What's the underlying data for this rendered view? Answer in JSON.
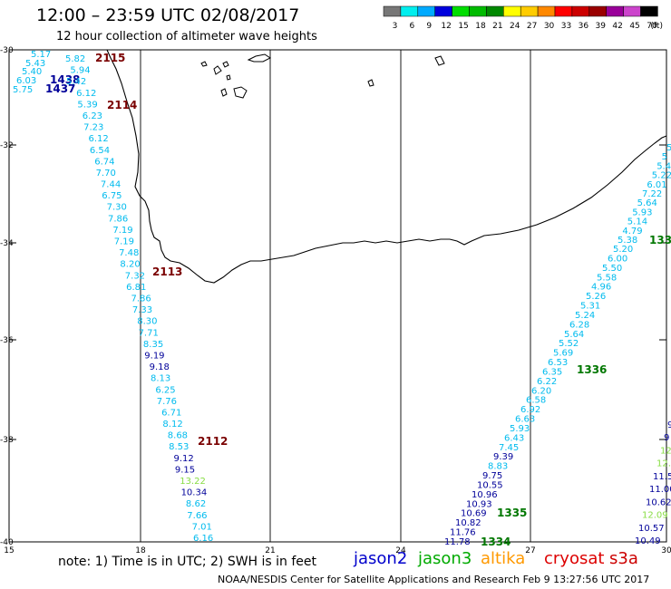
{
  "header": {
    "title": "12:00 – 23:59 UTC 02/08/2017",
    "subtitle": "12 hour collection of altimeter wave heights"
  },
  "legend": {
    "unit": "(ft)",
    "bins": [
      {
        "label": "3",
        "color": "#777777"
      },
      {
        "label": "6",
        "color": "#00eeee"
      },
      {
        "label": "9",
        "color": "#00aaff"
      },
      {
        "label": "12",
        "color": "#0000dd"
      },
      {
        "label": "15",
        "color": "#00dd00"
      },
      {
        "label": "18",
        "color": "#00bb00"
      },
      {
        "label": "21",
        "color": "#008800"
      },
      {
        "label": "24",
        "color": "#ffff00"
      },
      {
        "label": "27",
        "color": "#ffcc00"
      },
      {
        "label": "30",
        "color": "#ff8800"
      },
      {
        "label": "33",
        "color": "#ff0000"
      },
      {
        "label": "36",
        "color": "#cc0000"
      },
      {
        "label": "39",
        "color": "#990000"
      },
      {
        "label": "42",
        "color": "#990099"
      },
      {
        "label": "45",
        "color": "#cc44cc"
      },
      {
        "label": "70",
        "color": "#000000"
      }
    ]
  },
  "axes": {
    "lon_ticks": [
      "15",
      "18",
      "21",
      "24",
      "27",
      "30"
    ],
    "lat_ticks": [
      "-30",
      "-32",
      "-34",
      "-36",
      "-38",
      "-40"
    ]
  },
  "colors": {
    "c1": "#00bbee",
    "c2": "#000099",
    "c3": "#88dd44",
    "jason3": "#007700",
    "cryosat": "#7a0000"
  },
  "track_a": {
    "labels": [
      {
        "text": "5.17",
        "c": "c1"
      },
      {
        "text": "5.43",
        "c": "c1"
      },
      {
        "text": "5.40",
        "c": "c1"
      },
      {
        "text": "6.03",
        "c": "c1"
      },
      {
        "text": "5.75",
        "c": "c1"
      }
    ],
    "times": [
      "1438",
      "1437"
    ]
  },
  "track_b": {
    "labels": [
      {
        "text": "5.82",
        "c": "c1"
      },
      {
        "text": "5.94",
        "c": "c1"
      },
      {
        "text": "5.42",
        "c": "c1"
      },
      {
        "text": "6.12",
        "c": "c1"
      },
      {
        "text": "5.39",
        "c": "c1"
      },
      {
        "text": "6.23",
        "c": "c1"
      },
      {
        "text": "7.23",
        "c": "c1"
      },
      {
        "text": "6.12",
        "c": "c1"
      },
      {
        "text": "6.54",
        "c": "c1"
      },
      {
        "text": "6.74",
        "c": "c1"
      },
      {
        "text": "7.70",
        "c": "c1"
      },
      {
        "text": "7.44",
        "c": "c1"
      },
      {
        "text": "6.75",
        "c": "c1"
      },
      {
        "text": "7.30",
        "c": "c1"
      },
      {
        "text": "7.86",
        "c": "c1"
      },
      {
        "text": "7.19",
        "c": "c1"
      },
      {
        "text": "7.19",
        "c": "c1"
      },
      {
        "text": "7.48",
        "c": "c1"
      },
      {
        "text": "8.20",
        "c": "c1"
      },
      {
        "text": "7.32",
        "c": "c1"
      },
      {
        "text": "6.81",
        "c": "c1"
      },
      {
        "text": "7.86",
        "c": "c1"
      },
      {
        "text": "7.33",
        "c": "c1"
      },
      {
        "text": "8.30",
        "c": "c1"
      },
      {
        "text": "7.71",
        "c": "c1"
      },
      {
        "text": "8.35",
        "c": "c1"
      },
      {
        "text": "9.19",
        "c": "c2"
      },
      {
        "text": "9.18",
        "c": "c2"
      },
      {
        "text": "8.13",
        "c": "c1"
      },
      {
        "text": "6.25",
        "c": "c1"
      },
      {
        "text": "7.76",
        "c": "c1"
      },
      {
        "text": "6.71",
        "c": "c1"
      },
      {
        "text": "8.12",
        "c": "c1"
      },
      {
        "text": "8.68",
        "c": "c1"
      },
      {
        "text": "8.53",
        "c": "c1"
      },
      {
        "text": "9.12",
        "c": "c2"
      },
      {
        "text": "9.15",
        "c": "c2"
      },
      {
        "text": "13.22",
        "c": "c3"
      },
      {
        "text": "10.34",
        "c": "c2"
      },
      {
        "text": "8.62",
        "c": "c1"
      },
      {
        "text": "7.66",
        "c": "c1"
      },
      {
        "text": "7.01",
        "c": "c1"
      },
      {
        "text": "6.16",
        "c": "c1"
      }
    ],
    "times": [
      "2115",
      "2114",
      "2113",
      "2112"
    ]
  },
  "track_c": {
    "labels": [
      {
        "text": "5.20",
        "c": "c1"
      },
      {
        "text": "6.00",
        "c": "c1"
      },
      {
        "text": "5.50",
        "c": "c1"
      },
      {
        "text": "5.58",
        "c": "c1"
      },
      {
        "text": "4.96",
        "c": "c1"
      },
      {
        "text": "5.26",
        "c": "c1"
      },
      {
        "text": "5.31",
        "c": "c1"
      },
      {
        "text": "5.24",
        "c": "c1"
      },
      {
        "text": "6.28",
        "c": "c1"
      },
      {
        "text": "5.64",
        "c": "c1"
      },
      {
        "text": "5.52",
        "c": "c1"
      },
      {
        "text": "5.69",
        "c": "c1"
      },
      {
        "text": "6.53",
        "c": "c1"
      },
      {
        "text": "6.35",
        "c": "c1"
      },
      {
        "text": "6.22",
        "c": "c1"
      },
      {
        "text": "6.20",
        "c": "c1"
      },
      {
        "text": "6.58",
        "c": "c1"
      },
      {
        "text": "6.92",
        "c": "c1"
      },
      {
        "text": "6.63",
        "c": "c1"
      },
      {
        "text": "5.93",
        "c": "c1"
      },
      {
        "text": "6.43",
        "c": "c1"
      },
      {
        "text": "7.45",
        "c": "c1"
      },
      {
        "text": "9.39",
        "c": "c2"
      },
      {
        "text": "8.83",
        "c": "c1"
      },
      {
        "text": "9.75",
        "c": "c2"
      },
      {
        "text": "10.55",
        "c": "c2"
      },
      {
        "text": "10.96",
        "c": "c2"
      },
      {
        "text": "10.93",
        "c": "c2"
      },
      {
        "text": "10.69",
        "c": "c2"
      },
      {
        "text": "10.82",
        "c": "c2"
      },
      {
        "text": "11.76",
        "c": "c2"
      },
      {
        "text": "11.78",
        "c": "c2"
      }
    ],
    "times": [
      "1336",
      "1335",
      "1334"
    ]
  },
  "track_d": {
    "labels": [
      {
        "text": "5",
        "c": "c1"
      },
      {
        "text": "5",
        "c": "c1"
      },
      {
        "text": "5.4",
        "c": "c1"
      },
      {
        "text": "5.22",
        "c": "c1"
      },
      {
        "text": "6.01",
        "c": "c1"
      },
      {
        "text": "7.22",
        "c": "c1"
      },
      {
        "text": "5.64",
        "c": "c1"
      },
      {
        "text": "5.93",
        "c": "c1"
      },
      {
        "text": "5.14",
        "c": "c1"
      },
      {
        "text": "4.79",
        "c": "c1"
      },
      {
        "text": "5.38",
        "c": "c1"
      }
    ],
    "times": [
      "133"
    ]
  },
  "track_e": {
    "labels": [
      {
        "text": "9",
        "c": "c2"
      },
      {
        "text": "9",
        "c": "c2"
      },
      {
        "text": "12.",
        "c": "c3"
      },
      {
        "text": "12.",
        "c": "c3"
      },
      {
        "text": "11.5",
        "c": "c2"
      },
      {
        "text": "11.00",
        "c": "c2"
      },
      {
        "text": "10.62",
        "c": "c2"
      },
      {
        "text": "12.09",
        "c": "c3"
      },
      {
        "text": "10.57",
        "c": "c2"
      },
      {
        "text": "10.49",
        "c": "c2"
      }
    ]
  },
  "notes": {
    "text": "note: 1) Time is in UTC; 2) SWH is in feet",
    "satellites": [
      "jason2",
      "jason3",
      "altika",
      "cryosat",
      "s3a"
    ],
    "footer": "NOAA/NESDIS Center for Satellite Applications and Research    Feb  9 13:27:56 UTC 2017"
  }
}
